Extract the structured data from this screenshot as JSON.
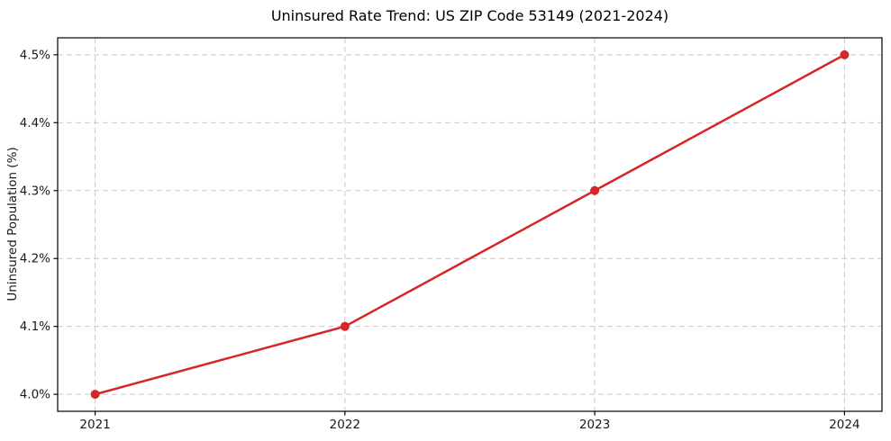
{
  "figure": {
    "background": "#ffffff"
  },
  "chart_data": {
    "type": "line",
    "title": "Uninsured Rate Trend: US ZIP Code 53149 (2021-2024)",
    "xlabel": "",
    "ylabel": "Uninsured Population (%)",
    "x": [
      2021,
      2022,
      2023,
      2024
    ],
    "x_tick_labels": [
      "2021",
      "2022",
      "2023",
      "2024"
    ],
    "series": [
      {
        "name": "Uninsured Population (%)",
        "values": [
          4.0,
          4.1,
          4.3,
          4.5
        ]
      }
    ],
    "y_ticks": [
      4.0,
      4.1,
      4.2,
      4.3,
      4.4,
      4.5
    ],
    "y_tick_labels": [
      "4.0%",
      "4.1%",
      "4.2%",
      "4.3%",
      "4.4%",
      "4.5%"
    ],
    "xlim": [
      2020.85,
      2024.15
    ],
    "ylim": [
      3.975,
      4.525
    ],
    "grid": true,
    "grid_style": "dashed",
    "legend": "none",
    "line_width": 2.5,
    "marker": "circle",
    "marker_radius": 5,
    "colors": {
      "line": "#d62728",
      "marker": "#d62728",
      "grid": "#c9c9c9",
      "spine": "#000000",
      "tick_text": "#1a1a1a",
      "title_text": "#000000"
    }
  }
}
